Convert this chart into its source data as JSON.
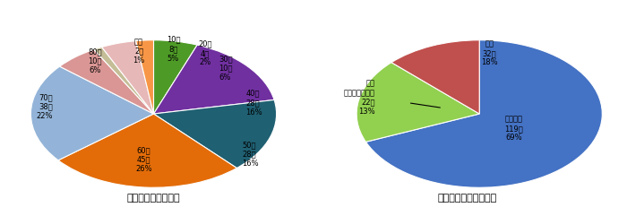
{
  "fig1_title": "図１　応募者の年齢",
  "fig1_values": [
    10,
    28,
    28,
    45,
    38,
    10,
    2,
    8,
    4
  ],
  "fig1_keys": [
    "30代",
    "40代",
    "50代",
    "60代",
    "70代",
    "80代",
    "不明",
    "10代",
    "20代"
  ],
  "fig1_counts": [
    10,
    28,
    28,
    45,
    38,
    10,
    2,
    8,
    4
  ],
  "fig1_pcts": [
    6,
    16,
    16,
    26,
    22,
    6,
    1,
    5,
    2
  ],
  "fig1_colors": [
    "#4e9a27",
    "#7030a0",
    "#1f6072",
    "#e36c09",
    "#93b4d8",
    "#d99694",
    "#c4bd97",
    "#e6b8b7",
    "#f79646"
  ],
  "fig1_startangle": 90,
  "fig2_title": "図２　応募者の居住地",
  "fig2_values": [
    119,
    32,
    22
  ],
  "fig2_keys": [
    "沼津市内",
    "県外",
    "県内\n（沼津市除く）"
  ],
  "fig2_counts": [
    119,
    32,
    22
  ],
  "fig2_pcts": [
    69,
    18,
    13
  ],
  "fig2_colors": [
    "#4472c4",
    "#92d050",
    "#c0504d"
  ],
  "fig2_startangle": 90,
  "bg_color": "#ffffff",
  "label_fontsize": 6.0,
  "title_fontsize": 8.0
}
